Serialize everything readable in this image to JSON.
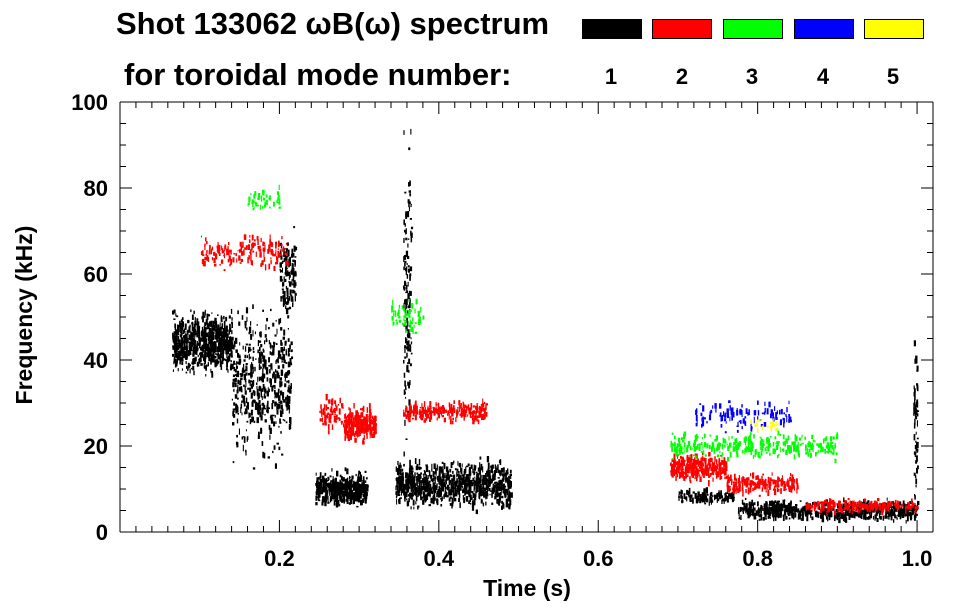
{
  "chart_data": {
    "type": "scatter",
    "title_line1": "Shot 133062 ωB(ω) spectrum",
    "title_line2": "for toroidal mode number:",
    "xlabel": "Time (s)",
    "ylabel": "Frequency (kHz)",
    "xlim": [
      0.0,
      1.02
    ],
    "ylim": [
      0,
      100
    ],
    "xticks": [
      0.2,
      0.4,
      0.6,
      0.8,
      1.0
    ],
    "xtick_labels": [
      "0.2",
      "0.4",
      "0.6",
      "0.8",
      "1.0"
    ],
    "yticks": [
      0,
      20,
      40,
      60,
      80,
      100
    ],
    "ytick_labels": [
      "0",
      "20",
      "40",
      "60",
      "80",
      "100"
    ],
    "legend": [
      {
        "mode": "1",
        "color": "#000000"
      },
      {
        "mode": "2",
        "color": "#ff0000"
      },
      {
        "mode": "3",
        "color": "#00ff00"
      },
      {
        "mode": "4",
        "color": "#0000ff"
      },
      {
        "mode": "5",
        "color": "#ffff00"
      }
    ],
    "series": [
      {
        "name": "n=1",
        "color": "#000000",
        "regions": [
          {
            "t0": 0.065,
            "t1": 0.14,
            "f": 44,
            "df": 9,
            "density": 700
          },
          {
            "t0": 0.14,
            "t1": 0.215,
            "f": 35,
            "df": 22,
            "density": 500
          },
          {
            "t0": 0.2,
            "t1": 0.22,
            "f": 60,
            "df": 12,
            "density": 120
          },
          {
            "t0": 0.245,
            "t1": 0.31,
            "f": 10,
            "df": 5,
            "density": 500
          },
          {
            "t0": 0.345,
            "t1": 0.49,
            "f": 11,
            "df": 7,
            "density": 900
          },
          {
            "t0": 0.355,
            "t1": 0.365,
            "f": 55,
            "df": 45,
            "density": 140
          },
          {
            "t0": 0.7,
            "t1": 0.77,
            "f": 8,
            "df": 2,
            "density": 120
          },
          {
            "t0": 0.775,
            "t1": 1.0,
            "f": 5,
            "df": 3,
            "density": 700
          },
          {
            "t0": 0.995,
            "t1": 1.0,
            "f": 25,
            "df": 25,
            "density": 60
          }
        ]
      },
      {
        "name": "n=2",
        "color": "#ff0000",
        "regions": [
          {
            "t0": 0.1,
            "t1": 0.21,
            "f": 65,
            "df": 5,
            "density": 160
          },
          {
            "t0": 0.28,
            "t1": 0.32,
            "f": 25,
            "df": 5,
            "density": 250
          },
          {
            "t0": 0.25,
            "t1": 0.28,
            "f": 28,
            "df": 6,
            "density": 60
          },
          {
            "t0": 0.355,
            "t1": 0.46,
            "f": 28,
            "df": 3,
            "density": 260
          },
          {
            "t0": 0.69,
            "t1": 0.76,
            "f": 15,
            "df": 4,
            "density": 300
          },
          {
            "t0": 0.76,
            "t1": 0.85,
            "f": 11,
            "df": 3,
            "density": 200
          },
          {
            "t0": 0.86,
            "t1": 1.0,
            "f": 6,
            "df": 2,
            "density": 180
          }
        ]
      },
      {
        "name": "n=3",
        "color": "#00ff00",
        "regions": [
          {
            "t0": 0.16,
            "t1": 0.2,
            "f": 77,
            "df": 4,
            "density": 40
          },
          {
            "t0": 0.34,
            "t1": 0.38,
            "f": 50,
            "df": 6,
            "density": 50
          },
          {
            "t0": 0.69,
            "t1": 0.9,
            "f": 20,
            "df": 4,
            "density": 300
          }
        ]
      },
      {
        "name": "n=4",
        "color": "#0000ff",
        "regions": [
          {
            "t0": 0.72,
            "t1": 0.84,
            "f": 27,
            "df": 4,
            "density": 110
          }
        ]
      },
      {
        "name": "n=5",
        "color": "#ffff00",
        "regions": [
          {
            "t0": 0.79,
            "t1": 0.83,
            "f": 25,
            "df": 2,
            "density": 20
          }
        ]
      }
    ]
  }
}
